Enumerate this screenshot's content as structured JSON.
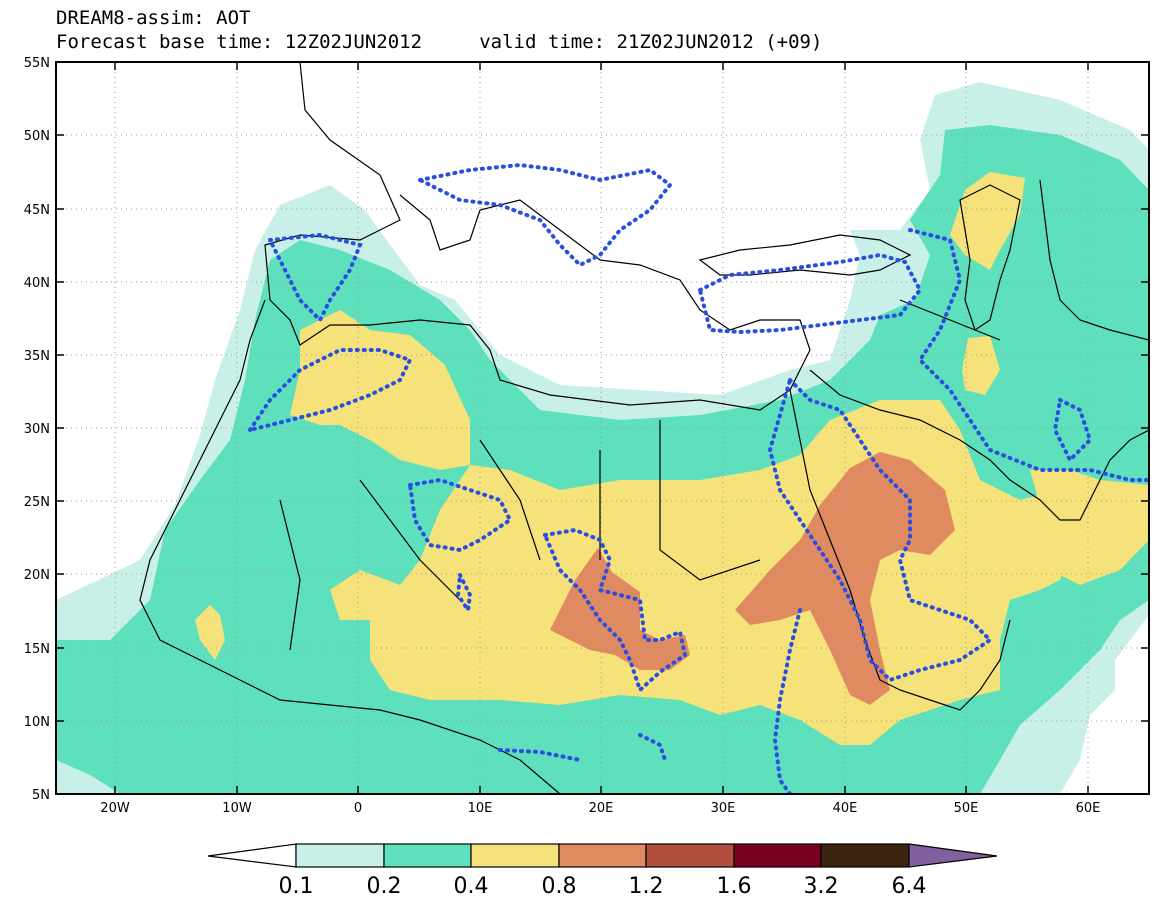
{
  "title": {
    "line1": "DREAM8-assim: AOT",
    "line2": "Forecast base time: 12Z02JUN2012     valid time: 21Z02JUN2012 (+09)"
  },
  "map": {
    "lon_range": [
      -25,
      65
    ],
    "lat_range": [
      5,
      55
    ],
    "lat_ticks": [
      "55N",
      "50N",
      "45N",
      "40N",
      "35N",
      "30N",
      "25N",
      "20N",
      "15N",
      "10N",
      "5N"
    ],
    "lon_ticks": [
      "20W",
      "10W",
      "0",
      "10E",
      "20E",
      "30E",
      "40E",
      "50E",
      "60E"
    ],
    "grid": "dotted"
  },
  "colorbar": {
    "labels": [
      "0.1",
      "0.2",
      "0.4",
      "0.8",
      "1.2",
      "1.6",
      "3.2",
      "6.4"
    ],
    "colors": [
      "#ffffff",
      "#c8f0e8",
      "#5ee0bc",
      "#f5e27a",
      "#e08a62",
      "#b0503c",
      "#7a0020",
      "#3d2410",
      "#8060a0"
    ],
    "extend": "both"
  },
  "legend_colors": {
    "coast": "#000000",
    "observations_dots": "#2a4fe0"
  }
}
